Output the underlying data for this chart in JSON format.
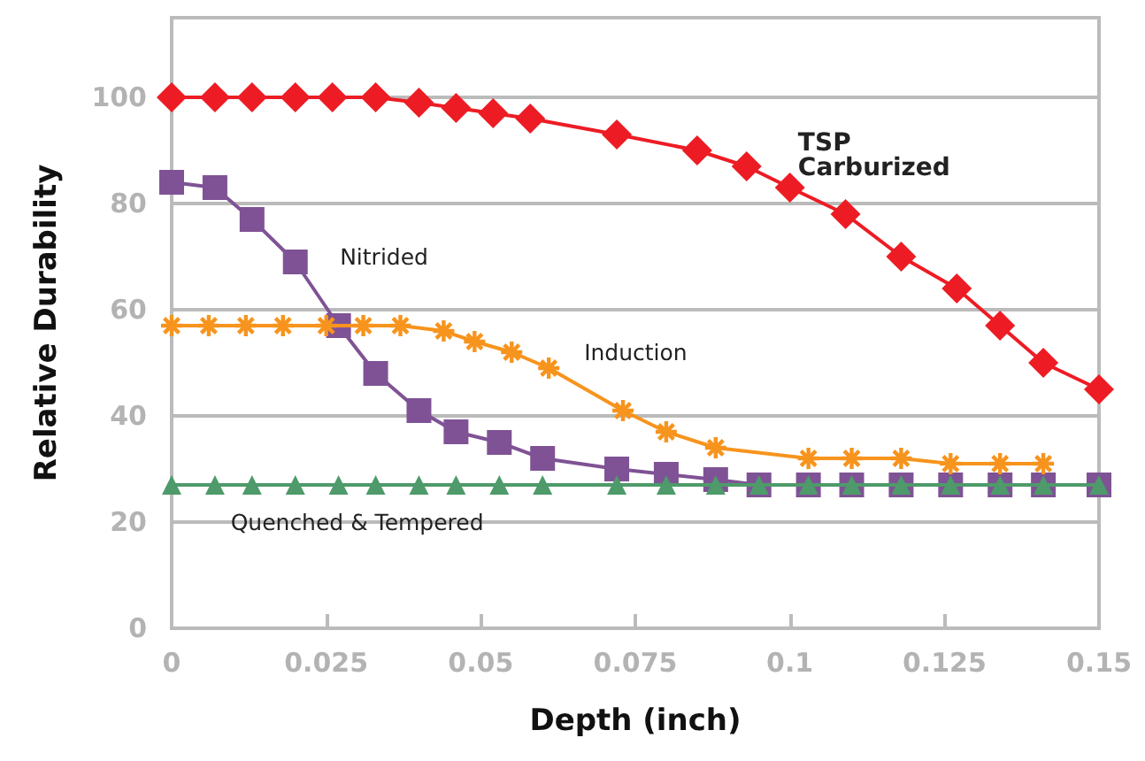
{
  "chart_data": {
    "type": "line",
    "xlabel": "Depth (inch)",
    "ylabel": "Relative Durability",
    "xlim": [
      0,
      0.15
    ],
    "xticks": [
      0,
      0.025,
      0.05,
      0.075,
      0.1,
      0.125,
      0.15
    ],
    "ylim": [
      0,
      115
    ],
    "yticks": [
      0,
      20,
      40,
      60,
      80,
      100
    ],
    "grid": "y",
    "legend": false,
    "line_style": "solid",
    "series": [
      {
        "name": "TSP Carburized",
        "color": "#ed1c24",
        "marker": "diamond",
        "x": [
          0,
          0.007,
          0.013,
          0.02,
          0.026,
          0.033,
          0.04,
          0.046,
          0.052,
          0.058,
          0.072,
          0.085,
          0.093,
          0.1,
          0.109,
          0.118,
          0.127,
          0.134,
          0.141,
          0.15
        ],
        "values": [
          100,
          100,
          100,
          100,
          100,
          100,
          99,
          98,
          97,
          96,
          93,
          90,
          87,
          83,
          78,
          70,
          64,
          57,
          50,
          45
        ]
      },
      {
        "name": "Nitrided",
        "color": "#7f5295",
        "marker": "square",
        "x": [
          0,
          0.007,
          0.013,
          0.02,
          0.027,
          0.033,
          0.04,
          0.046,
          0.053,
          0.06,
          0.072,
          0.08,
          0.088,
          0.095,
          0.103,
          0.11,
          0.118,
          0.126,
          0.134,
          0.141,
          0.15
        ],
        "values": [
          84,
          83,
          77,
          69,
          57,
          48,
          41,
          37,
          35,
          32,
          30,
          29,
          28,
          27,
          27,
          27,
          27,
          27,
          27,
          27,
          27
        ]
      },
      {
        "name": "Induction",
        "color": "#f7941d",
        "marker": "cross",
        "x": [
          0,
          0.006,
          0.012,
          0.018,
          0.025,
          0.031,
          0.037,
          0.044,
          0.049,
          0.055,
          0.061,
          0.073,
          0.08,
          0.088,
          0.103,
          0.11,
          0.118,
          0.126,
          0.134,
          0.141
        ],
        "values": [
          57,
          57,
          57,
          57,
          57,
          57,
          57,
          56,
          54,
          52,
          49,
          41,
          37,
          34,
          32,
          32,
          32,
          31,
          31,
          31
        ]
      },
      {
        "name": "Quenched & Tempered",
        "color": "#4e9a6a",
        "marker": "triangle",
        "x": [
          0,
          0.007,
          0.013,
          0.02,
          0.027,
          0.033,
          0.04,
          0.046,
          0.053,
          0.06,
          0.072,
          0.08,
          0.088,
          0.095,
          0.103,
          0.11,
          0.118,
          0.126,
          0.134,
          0.141,
          0.15
        ],
        "values": [
          27,
          27,
          27,
          27,
          27,
          27,
          27,
          27,
          27,
          27,
          27,
          27,
          27,
          27,
          27,
          27,
          27,
          27,
          27,
          27,
          27
        ]
      }
    ]
  }
}
